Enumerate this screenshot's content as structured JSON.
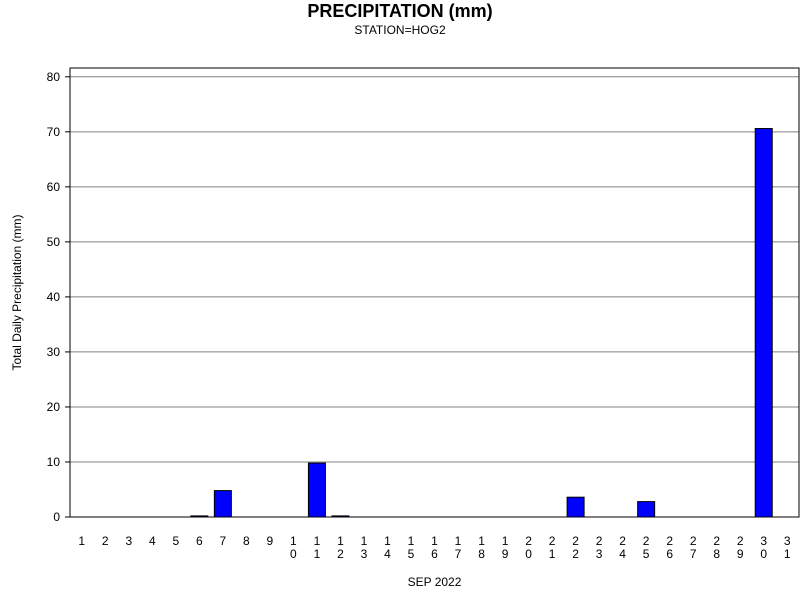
{
  "chart_data": {
    "type": "bar",
    "title": "PRECIPITATION (mm)",
    "subtitle": "STATION=HOG2",
    "xlabel": "SEP 2022",
    "ylabel": "Total Daily Precipitation (mm)",
    "ylim": [
      0,
      80
    ],
    "yticks": [
      0,
      10,
      20,
      30,
      40,
      50,
      60,
      70,
      80
    ],
    "grid": true,
    "categories": [
      "1",
      "2",
      "3",
      "4",
      "5",
      "6",
      "7",
      "8",
      "9",
      "10",
      "11",
      "12",
      "13",
      "14",
      "15",
      "16",
      "17",
      "18",
      "19",
      "20",
      "21",
      "22",
      "23",
      "24",
      "25",
      "26",
      "27",
      "28",
      "29",
      "30",
      "31"
    ],
    "values": [
      0,
      0,
      0,
      0,
      0,
      0.2,
      4.8,
      0,
      0,
      0,
      9.8,
      0.2,
      0,
      0,
      0,
      0,
      0,
      0,
      0,
      0,
      0,
      3.6,
      0,
      0,
      2.8,
      0,
      0,
      0,
      0,
      70.6,
      0
    ],
    "bar_color": "#0000ff"
  }
}
